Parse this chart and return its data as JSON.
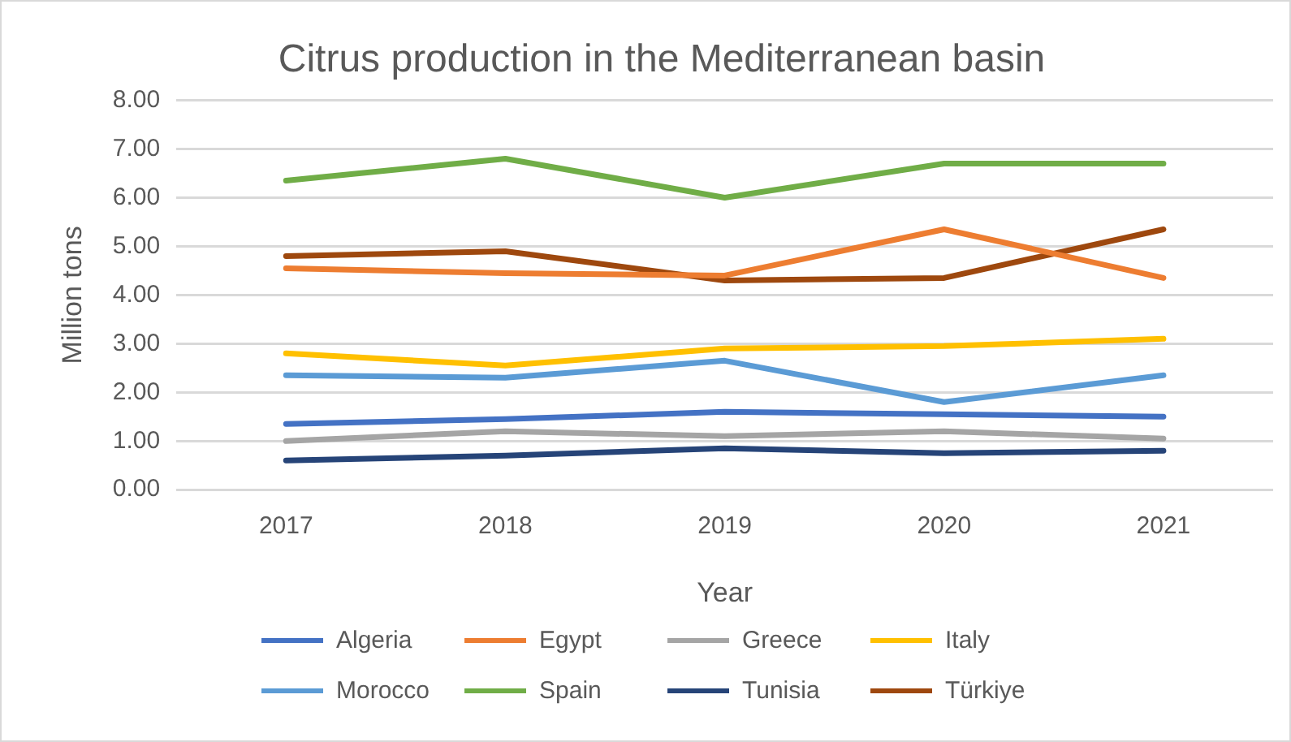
{
  "chart_data": {
    "type": "line",
    "title": "Citrus production in the Mediterranean basin",
    "xlabel": "Year",
    "ylabel": "Million tons",
    "categories": [
      "2017",
      "2018",
      "2019",
      "2020",
      "2021"
    ],
    "series": [
      {
        "name": "Algeria",
        "color": "#4472c4",
        "values": [
          1.35,
          1.45,
          1.6,
          1.55,
          1.5
        ]
      },
      {
        "name": "Egypt",
        "color": "#ed7d31",
        "values": [
          4.55,
          4.45,
          4.4,
          5.35,
          4.35
        ]
      },
      {
        "name": "Greece",
        "color": "#a5a5a5",
        "values": [
          1.0,
          1.2,
          1.1,
          1.2,
          1.05
        ]
      },
      {
        "name": "Italy",
        "color": "#ffc000",
        "values": [
          2.8,
          2.55,
          2.9,
          2.95,
          3.1
        ]
      },
      {
        "name": "Morocco",
        "color": "#5b9bd5",
        "values": [
          2.35,
          2.3,
          2.65,
          1.8,
          2.35
        ]
      },
      {
        "name": "Spain",
        "color": "#70ad47",
        "values": [
          6.35,
          6.8,
          6.0,
          6.7,
          6.7
        ]
      },
      {
        "name": "Tunisia",
        "color": "#264478",
        "values": [
          0.6,
          0.7,
          0.85,
          0.75,
          0.8
        ]
      },
      {
        "name": "Türkiye",
        "color": "#9e480e",
        "values": [
          4.8,
          4.9,
          4.3,
          4.35,
          5.35
        ]
      }
    ],
    "ylim": [
      0,
      8
    ],
    "yticks": [
      {
        "value": 0,
        "label": "0.00"
      },
      {
        "value": 1,
        "label": "1.00"
      },
      {
        "value": 2,
        "label": "2.00"
      },
      {
        "value": 3,
        "label": "3.00"
      },
      {
        "value": 4,
        "label": "4.00"
      },
      {
        "value": 5,
        "label": "5.00"
      },
      {
        "value": 6,
        "label": "6.00"
      },
      {
        "value": 7,
        "label": "7.00"
      },
      {
        "value": 8,
        "label": "8.00"
      }
    ],
    "grid": "y",
    "legend": "bottom",
    "marker": "none",
    "line_style": "solid"
  }
}
